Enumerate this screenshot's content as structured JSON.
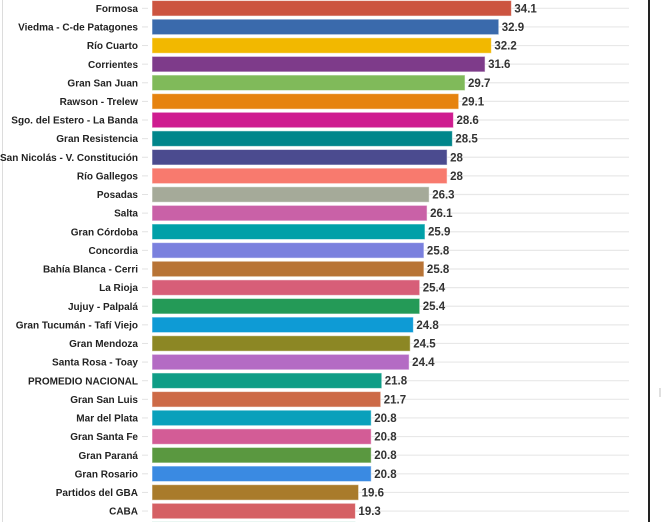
{
  "chart_data": {
    "type": "bar",
    "orientation": "horizontal",
    "title": "",
    "xlabel": "",
    "ylabel": "",
    "xlim": [
      0,
      45
    ],
    "grid": true,
    "legend": "none",
    "categories": [
      "Formosa",
      "Viedma - C-de Patagones",
      "Río Cuarto",
      "Corrientes",
      "Gran San Juan",
      "Rawson - Trelew",
      "Sgo. del Estero - La Banda",
      "Gran Resistencia",
      "San Nicolás - V. Constitución",
      "Río Gallegos",
      "Posadas",
      "Salta",
      "Gran Córdoba",
      "Concordia",
      "Bahía Blanca - Cerri",
      "La Rioja",
      "Jujuy - Palpalá",
      "Gran Tucumán - Tafí Viejo",
      "Gran Mendoza",
      "Santa Rosa - Toay",
      "PROMEDIO NACIONAL",
      "Gran San Luis",
      "Mar del Plata",
      "Gran Santa Fe",
      "Gran Paraná",
      "Gran Rosario",
      "Partidos del GBA",
      "CABA"
    ],
    "values": [
      34.1,
      32.9,
      32.2,
      31.6,
      29.7,
      29.1,
      28.6,
      28.5,
      28,
      28,
      26.3,
      26.1,
      25.9,
      25.8,
      25.8,
      25.4,
      25.4,
      24.8,
      24.5,
      24.4,
      21.8,
      21.7,
      20.8,
      20.8,
      20.8,
      20.8,
      19.6,
      19.3
    ],
    "value_labels": [
      "34.1",
      "32.9",
      "32.2",
      "31.6",
      "29.7",
      "29.1",
      "28.6",
      "28.5",
      "28",
      "28",
      "26.3",
      "26.1",
      "25.9",
      "25.8",
      "25.8",
      "25.4",
      "25.4",
      "24.8",
      "24.5",
      "24.4",
      "21.8",
      "21.7",
      "20.8",
      "20.8",
      "20.8",
      "20.8",
      "19.6",
      "19.3"
    ],
    "colors": [
      "#cc5440",
      "#3a6aac",
      "#f2b800",
      "#7e3b8a",
      "#80ba5a",
      "#e6830f",
      "#cf1c90",
      "#00868b",
      "#4b4b8f",
      "#f87a6e",
      "#a5aa99",
      "#c961a7",
      "#00a0a8",
      "#7a80de",
      "#b87436",
      "#d75e78",
      "#249a57",
      "#0e9bd5",
      "#8c8724",
      "#b46bc4",
      "#0f9d86",
      "#cd6a47",
      "#09a0bb",
      "#d35c96",
      "#5a9840",
      "#3a8ae2",
      "#a97b2b",
      "#d56064",
      "#0f9d74"
    ],
    "partial_next_bar_color": "#0f9d74"
  }
}
